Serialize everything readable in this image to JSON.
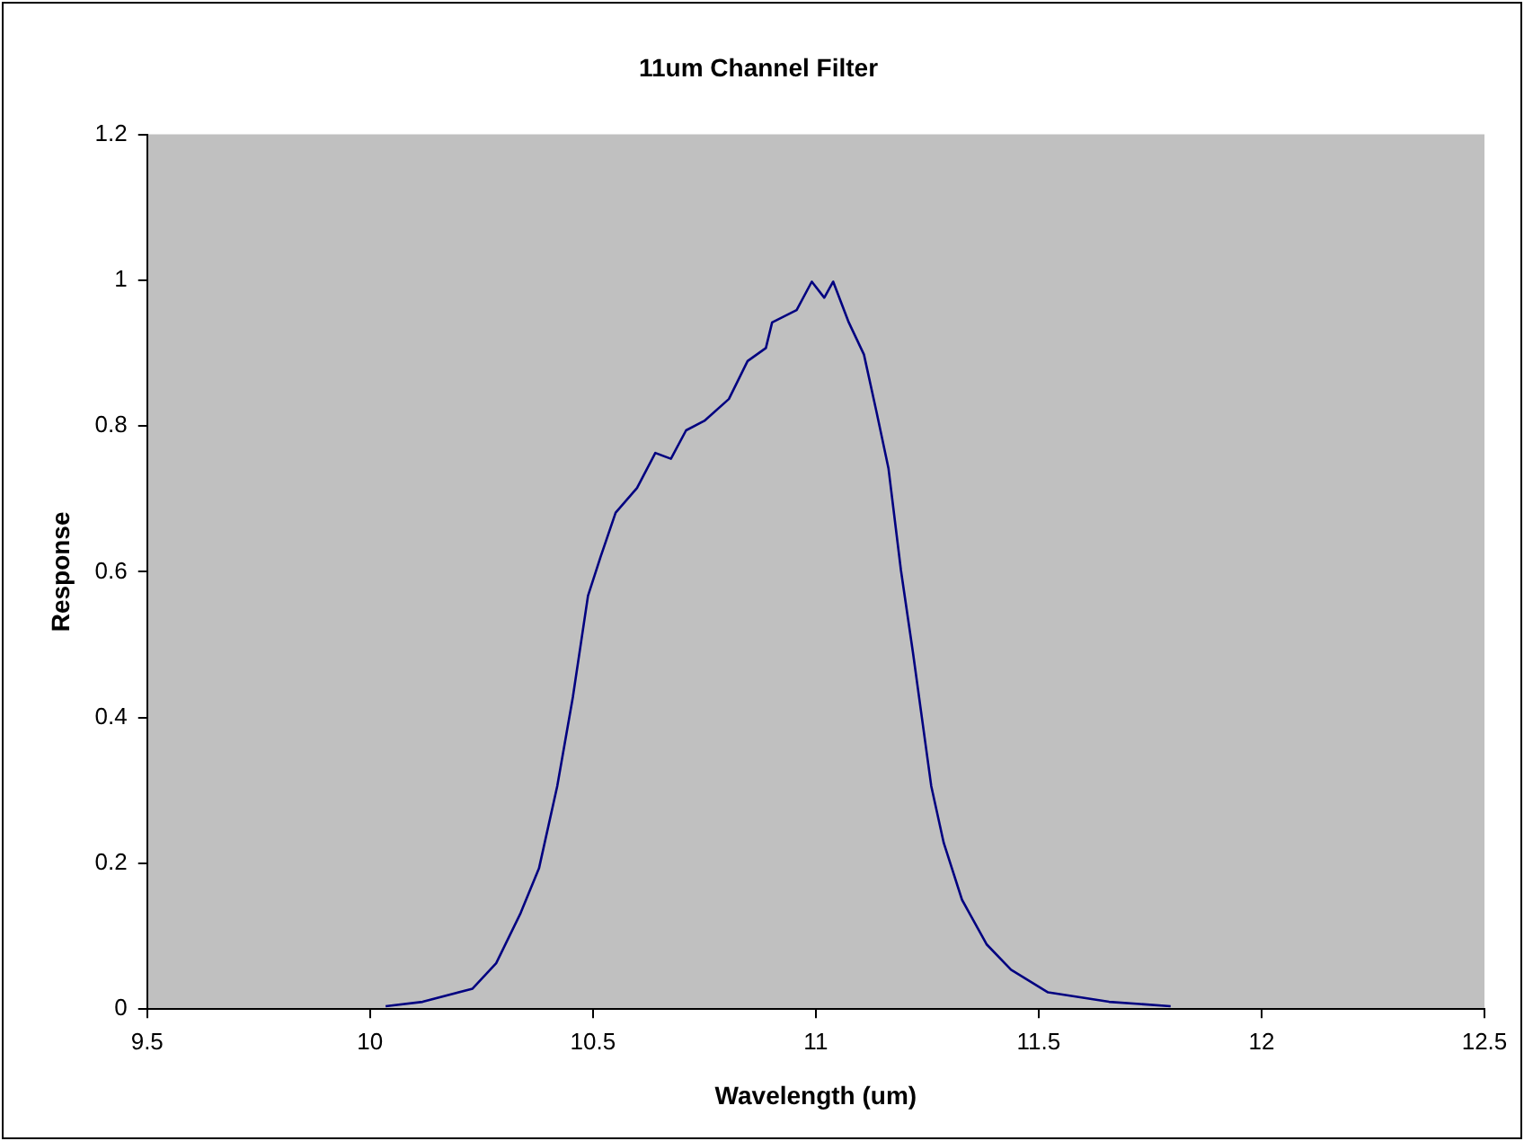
{
  "chart_data": {
    "type": "line",
    "title": "11um Channel Filter",
    "xlabel": "Wavelength (um)",
    "ylabel": "Response",
    "xlim": [
      9.5,
      12.5
    ],
    "xticks": [
      9.5,
      10,
      10.5,
      11,
      11.5,
      12,
      12.5
    ],
    "ylim": [
      0,
      1.2
    ],
    "yticks": [
      0,
      0.2,
      0.4,
      0.6,
      0.8,
      1,
      1.2
    ],
    "grid": false,
    "legend": false,
    "marker": "none",
    "line_style": "solid",
    "series": [
      {
        "color": "#000080",
        "x": [
          10.035,
          10.118,
          10.23,
          10.283,
          10.338,
          10.379,
          10.42,
          10.455,
          10.489,
          10.517,
          10.551,
          10.599,
          10.64,
          10.675,
          10.709,
          10.75,
          10.805,
          10.847,
          10.888,
          10.902,
          10.957,
          10.991,
          11.019,
          11.039,
          11.074,
          11.108,
          11.136,
          11.163,
          11.191,
          11.218,
          11.259,
          11.287,
          11.328,
          11.383,
          11.438,
          11.521,
          11.658,
          11.796
        ],
        "values": [
          0.004,
          0.01,
          0.028,
          0.063,
          0.132,
          0.193,
          0.306,
          0.428,
          0.567,
          0.62,
          0.681,
          0.715,
          0.763,
          0.755,
          0.794,
          0.807,
          0.837,
          0.889,
          0.907,
          0.942,
          0.959,
          0.998,
          0.976,
          0.998,
          0.942,
          0.898,
          0.82,
          0.742,
          0.602,
          0.489,
          0.306,
          0.228,
          0.15,
          0.089,
          0.054,
          0.023,
          0.01,
          0.004
        ]
      }
    ]
  }
}
